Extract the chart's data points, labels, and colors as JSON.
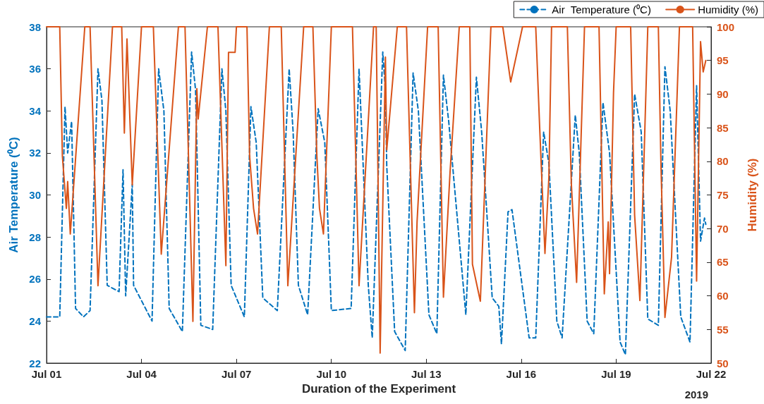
{
  "chart_data": {
    "type": "line",
    "xlabel": "Duration of the Experiment",
    "ylabel": "Air Temperature (⁰C)",
    "y2label": "Humidity (%)",
    "annotations": [
      "2019"
    ],
    "xlim": [
      "2019-07-01",
      "2019-07-22"
    ],
    "xticks": [
      {
        "value": "2019-07-01",
        "label": "Jul 01"
      },
      {
        "value": "2019-07-04",
        "label": "Jul 04"
      },
      {
        "value": "2019-07-07",
        "label": "Jul 07"
      },
      {
        "value": "2019-07-10",
        "label": "Jul 10"
      },
      {
        "value": "2019-07-13",
        "label": "Jul 13"
      },
      {
        "value": "2019-07-16",
        "label": "Jul 16"
      },
      {
        "value": "2019-07-19",
        "label": "Jul 19"
      },
      {
        "value": "2019-07-22",
        "label": "Jul 22"
      }
    ],
    "ylim": [
      22,
      38
    ],
    "yticks": [
      22,
      24,
      26,
      28,
      30,
      32,
      34,
      36,
      38
    ],
    "y2lim": [
      50,
      100
    ],
    "y2ticks": [
      50,
      55,
      60,
      65,
      70,
      75,
      80,
      85,
      90,
      95,
      100
    ],
    "grid": false,
    "legend": "top right",
    "marker": "none",
    "series": [
      {
        "name": "Air  Temperature (⁰C)",
        "color": "#0072bd",
        "line_style": "dashed",
        "x": [
          "2019-07-01T00:00",
          "2019-07-01T10:00",
          "2019-07-01T14:00",
          "2019-07-01T16:00",
          "2019-07-01T19:00",
          "2019-07-01T22:00",
          "2019-07-02T04:00",
          "2019-07-02T09:00",
          "2019-07-02T15:00",
          "2019-07-02T18:00",
          "2019-07-02T22:00",
          "2019-07-03T07:00",
          "2019-07-03T10:00",
          "2019-07-03T12:00",
          "2019-07-03T17:00",
          "2019-07-03T18:00",
          "2019-07-04T08:00",
          "2019-07-04T13:00",
          "2019-07-04T17:00",
          "2019-07-04T21:00",
          "2019-07-05T07:00",
          "2019-07-05T14:00",
          "2019-07-05T17:00",
          "2019-07-05T21:00",
          "2019-07-06T06:00",
          "2019-07-06T13:00",
          "2019-07-06T16:00",
          "2019-07-06T20:00",
          "2019-07-07T06:00",
          "2019-07-07T11:00",
          "2019-07-07T15:00",
          "2019-07-07T20:00",
          "2019-07-08T07:00",
          "2019-07-08T16:00",
          "2019-07-08T19:00",
          "2019-07-08T23:00",
          "2019-07-09T06:00",
          "2019-07-09T14:00",
          "2019-07-09T19:00",
          "2019-07-10T00:00",
          "2019-07-10T15:00",
          "2019-07-10T21:00",
          "2019-07-11T04:00",
          "2019-07-11T07:00",
          "2019-07-11T15:00",
          "2019-07-11T17:00",
          "2019-07-11T18:00",
          "2019-07-12T00:00",
          "2019-07-12T08:00",
          "2019-07-12T14:00",
          "2019-07-12T18:00",
          "2019-07-13T02:00",
          "2019-07-13T08:00",
          "2019-07-13T13:00",
          "2019-07-13T17:00",
          "2019-07-14T06:00",
          "2019-07-14T14:00",
          "2019-07-14T18:00",
          "2019-07-15T02:00",
          "2019-07-15T07:00",
          "2019-07-15T09:00",
          "2019-07-15T14:00",
          "2019-07-15T17:00",
          "2019-07-16T06:00",
          "2019-07-16T11:00",
          "2019-07-16T17:00",
          "2019-07-16T21:00",
          "2019-07-17T03:00",
          "2019-07-17T07:00",
          "2019-07-17T17:00",
          "2019-07-17T20:00",
          "2019-07-18T02:00",
          "2019-07-18T07:00",
          "2019-07-18T14:00",
          "2019-07-18T19:00",
          "2019-07-19T03:00",
          "2019-07-19T07:00",
          "2019-07-19T14:00",
          "2019-07-19T19:00",
          "2019-07-20T00:00",
          "2019-07-20T08:00",
          "2019-07-20T13:00",
          "2019-07-20T17:00",
          "2019-07-21T01:00",
          "2019-07-21T08:00",
          "2019-07-21T13:00",
          "2019-07-21T16:00",
          "2019-07-21T19:00",
          "2019-07-21T20:00"
        ],
        "values": [
          24.2,
          24.2,
          34.2,
          32.0,
          33.5,
          24.6,
          24.2,
          24.5,
          36.0,
          34.5,
          25.7,
          25.4,
          31.2,
          25.2,
          30.5,
          25.7,
          24.0,
          36.0,
          34.0,
          24.6,
          23.5,
          36.8,
          35.0,
          23.8,
          23.6,
          36.0,
          34.0,
          25.7,
          24.2,
          34.2,
          32.5,
          25.1,
          24.5,
          36.0,
          33.0,
          25.7,
          24.3,
          34.1,
          32.5,
          24.5,
          24.6,
          36.0,
          25.7,
          23.2,
          36.8,
          35.0,
          31.4,
          23.5,
          22.6,
          35.8,
          34.0,
          24.3,
          23.4,
          35.7,
          33.5,
          24.3,
          35.6,
          33.0,
          25.1,
          24.7,
          22.9,
          29.2,
          29.3,
          23.2,
          23.2,
          33.0,
          31.5,
          24.0,
          23.2,
          33.8,
          32.0,
          24.0,
          23.4,
          34.4,
          32.0,
          23.0,
          22.4,
          34.8,
          33.0,
          24.1,
          23.8,
          36.1,
          34.0,
          24.2,
          23.0,
          35.2,
          27.8,
          28.9,
          28.6
        ]
      },
      {
        "name": "Humidity (%)",
        "color": "#d95319",
        "line_style": "solid",
        "axis": "y2",
        "x": [
          "2019-07-01T00:00",
          "2019-07-01T10:00",
          "2019-07-01T12:00",
          "2019-07-01T15:00",
          "2019-07-01T16:00",
          "2019-07-01T18:00",
          "2019-07-02T05:00",
          "2019-07-02T09:00",
          "2019-07-02T15:00",
          "2019-07-03T02:00",
          "2019-07-03T09:00",
          "2019-07-03T11:00",
          "2019-07-03T13:00",
          "2019-07-03T17:00",
          "2019-07-04T00:00",
          "2019-07-04T09:00",
          "2019-07-04T15:00",
          "2019-07-05T04:00",
          "2019-07-05T09:00",
          "2019-07-05T15:00",
          "2019-07-05T18:00",
          "2019-07-05T19:00",
          "2019-07-06T02:00",
          "2019-07-06T10:00",
          "2019-07-06T16:00",
          "2019-07-06T18:00",
          "2019-07-06T23:00",
          "2019-07-07T00:00",
          "2019-07-07T08:00",
          "2019-07-07T10:00",
          "2019-07-07T13:00",
          "2019-07-07T16:00",
          "2019-07-08T01:00",
          "2019-07-08T10:00",
          "2019-07-08T15:00",
          "2019-07-09T03:00",
          "2019-07-09T10:00",
          "2019-07-09T13:00",
          "2019-07-09T15:00",
          "2019-07-09T18:00",
          "2019-07-10T00:00",
          "2019-07-10T16:00",
          "2019-07-10T21:00",
          "2019-07-11T08:00",
          "2019-07-11T10:00",
          "2019-07-11T13:00",
          "2019-07-11T17:00",
          "2019-07-11T18:00",
          "2019-07-12T02:00",
          "2019-07-12T09:00",
          "2019-07-12T15:00",
          "2019-07-12T17:00",
          "2019-07-13T01:00",
          "2019-07-13T09:00",
          "2019-07-13T13:00",
          "2019-07-13T18:00",
          "2019-07-14T01:00",
          "2019-07-14T09:00",
          "2019-07-14T11:00",
          "2019-07-14T17:00",
          "2019-07-15T01:00",
          "2019-07-15T10:00",
          "2019-07-15T16:00",
          "2019-07-16T01:00",
          "2019-07-16T11:00",
          "2019-07-16T14:00",
          "2019-07-16T18:00",
          "2019-07-16T21:00",
          "2019-07-16T23:00",
          "2019-07-17T11:00",
          "2019-07-17T14:00",
          "2019-07-17T18:00",
          "2019-07-18T00:00",
          "2019-07-18T11:00",
          "2019-07-18T15:00",
          "2019-07-18T18:00",
          "2019-07-18T19:00",
          "2019-07-18T22:00",
          "2019-07-19T00:00",
          "2019-07-19T11:00",
          "2019-07-19T14:00",
          "2019-07-19T18:00",
          "2019-07-20T00:00",
          "2019-07-20T08:00",
          "2019-07-20T10:00",
          "2019-07-20T13:00",
          "2019-07-20T18:00",
          "2019-07-21T00:00",
          "2019-07-21T10:00",
          "2019-07-21T13:00",
          "2019-07-21T16:00",
          "2019-07-21T18:00",
          "2019-07-21T20:00"
        ],
        "values": [
          100,
          100,
          80.8,
          73,
          77,
          69.2,
          100,
          100,
          61.5,
          100,
          100,
          84.2,
          98.2,
          76.5,
          100,
          100,
          66.2,
          100,
          100,
          56.2,
          90.8,
          86.3,
          100,
          100,
          64.5,
          96.2,
          96.2,
          100,
          100,
          80.8,
          73,
          69.2,
          100,
          100,
          61.5,
          100,
          100,
          80.8,
          73,
          69.2,
          100,
          100,
          61.5,
          100,
          100,
          51.5,
          95.5,
          81.7,
          100,
          100,
          57.5,
          71,
          100,
          100,
          59.8,
          78.3,
          100,
          100,
          64.7,
          59.2,
          100,
          100,
          91.8,
          100,
          100,
          85,
          66.3,
          77.7,
          100,
          100,
          76.7,
          62,
          100,
          100,
          60.3,
          71,
          63.3,
          90.2,
          100,
          100,
          72,
          59.3,
          100,
          100,
          79.3,
          56.8,
          65.7,
          100,
          100,
          62.2,
          97.8,
          93.3,
          95
        ]
      }
    ]
  }
}
